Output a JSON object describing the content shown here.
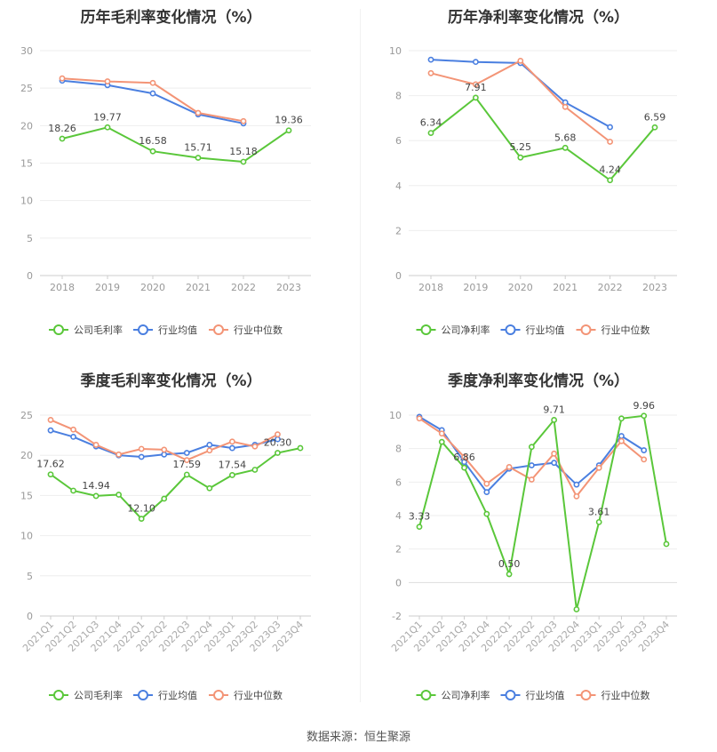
{
  "source": "数据来源：恒生聚源",
  "legend_labels": [
    "公司毛利率",
    "行业均值",
    "行业中位数"
  ],
  "colors": {
    "company": "#5ac73a",
    "mean": "#4a7fe0",
    "median": "#f39476"
  },
  "chart_data": [
    {
      "type": "line",
      "title": "历年毛利率变化情况（%）",
      "categories": [
        "2018",
        "2019",
        "2020",
        "2021",
        "2022",
        "2023"
      ],
      "ylim": [
        0,
        30
      ],
      "yticks": [
        0,
        5,
        10,
        15,
        20,
        25,
        30
      ],
      "legend": [
        "公司毛利率",
        "行业均值",
        "行业中位数"
      ],
      "series": [
        {
          "name": "公司毛利率",
          "values": [
            18.26,
            19.77,
            16.58,
            15.71,
            15.18,
            19.36
          ]
        },
        {
          "name": "行业均值",
          "values": [
            26.0,
            25.4,
            24.3,
            21.5,
            20.3,
            null
          ]
        },
        {
          "name": "行业中位数",
          "values": [
            26.3,
            25.9,
            25.7,
            21.7,
            20.6,
            null
          ]
        }
      ],
      "labels": [
        "18.26",
        "19.77",
        "16.58",
        "15.71",
        "15.18",
        "19.36"
      ]
    },
    {
      "type": "line",
      "title": "历年净利率变化情况（%）",
      "categories": [
        "2018",
        "2019",
        "2020",
        "2021",
        "2022",
        "2023"
      ],
      "ylim": [
        0,
        10
      ],
      "yticks": [
        0,
        2,
        4,
        6,
        8,
        10
      ],
      "legend": [
        "公司净利率",
        "行业均值",
        "行业中位数"
      ],
      "series": [
        {
          "name": "公司净利率",
          "values": [
            6.34,
            7.91,
            5.25,
            5.68,
            4.24,
            6.59
          ]
        },
        {
          "name": "行业均值",
          "values": [
            9.6,
            9.5,
            9.45,
            7.7,
            6.6,
            null
          ]
        },
        {
          "name": "行业中位数",
          "values": [
            9.0,
            8.5,
            9.55,
            7.5,
            5.95,
            null
          ]
        }
      ],
      "labels": [
        "6.34",
        "7.91",
        "5.25",
        "5.68",
        "4.24",
        "6.59"
      ]
    },
    {
      "type": "line",
      "title": "季度毛利率变化情况（%）",
      "categories": [
        "2021Q1",
        "2021Q2",
        "2021Q3",
        "2021Q4",
        "2022Q1",
        "2022Q2",
        "2022Q3",
        "2022Q4",
        "2023Q1",
        "2023Q2",
        "2023Q3",
        "2023Q4"
      ],
      "ylim": [
        0,
        25
      ],
      "yticks": [
        0,
        5,
        10,
        15,
        20,
        25
      ],
      "legend": [
        "公司毛利率",
        "行业均值",
        "行业中位数"
      ],
      "series": [
        {
          "name": "公司毛利率",
          "values": [
            17.62,
            15.6,
            14.94,
            15.1,
            12.1,
            14.6,
            17.59,
            15.9,
            17.54,
            18.2,
            20.3,
            20.9
          ]
        },
        {
          "name": "行业均值",
          "values": [
            23.1,
            22.3,
            21.1,
            20.0,
            19.8,
            20.1,
            20.3,
            21.3,
            20.9,
            21.3,
            22.0,
            null
          ]
        },
        {
          "name": "行业中位数",
          "values": [
            24.4,
            23.2,
            21.3,
            20.1,
            20.8,
            20.7,
            19.4,
            20.6,
            21.7,
            21.1,
            22.6,
            null
          ]
        }
      ],
      "labels": [
        "17.62",
        "",
        "14.94",
        "",
        "12.10",
        "",
        "17.59",
        "",
        "17.54",
        "",
        "20.30",
        ""
      ]
    },
    {
      "type": "line",
      "title": "季度净利率变化情况（%）",
      "categories": [
        "2021Q1",
        "2021Q2",
        "2021Q3",
        "2021Q4",
        "2022Q1",
        "2022Q2",
        "2022Q3",
        "2022Q4",
        "2023Q1",
        "2023Q2",
        "2023Q3",
        "2023Q4"
      ],
      "ylim": [
        -2,
        10
      ],
      "yticks": [
        -2,
        0,
        2,
        4,
        6,
        8,
        10
      ],
      "legend": [
        "公司净利率",
        "行业均值",
        "行业中位数"
      ],
      "series": [
        {
          "name": "公司净利率",
          "values": [
            3.33,
            8.4,
            6.86,
            4.1,
            0.5,
            8.1,
            9.71,
            -1.6,
            3.61,
            9.8,
            9.96,
            2.3
          ]
        },
        {
          "name": "行业均值",
          "values": [
            9.9,
            9.1,
            7.2,
            5.4,
            6.8,
            7.0,
            7.15,
            5.85,
            7.0,
            8.75,
            7.9,
            null
          ]
        },
        {
          "name": "行业中位数",
          "values": [
            9.8,
            8.9,
            7.5,
            5.9,
            6.9,
            6.15,
            7.7,
            5.15,
            6.85,
            8.45,
            7.35,
            null
          ]
        }
      ],
      "labels": [
        "3.33",
        "",
        "6.86",
        "",
        "0.50",
        "",
        "9.71",
        "",
        "3.61",
        "",
        "9.96",
        ""
      ]
    }
  ]
}
